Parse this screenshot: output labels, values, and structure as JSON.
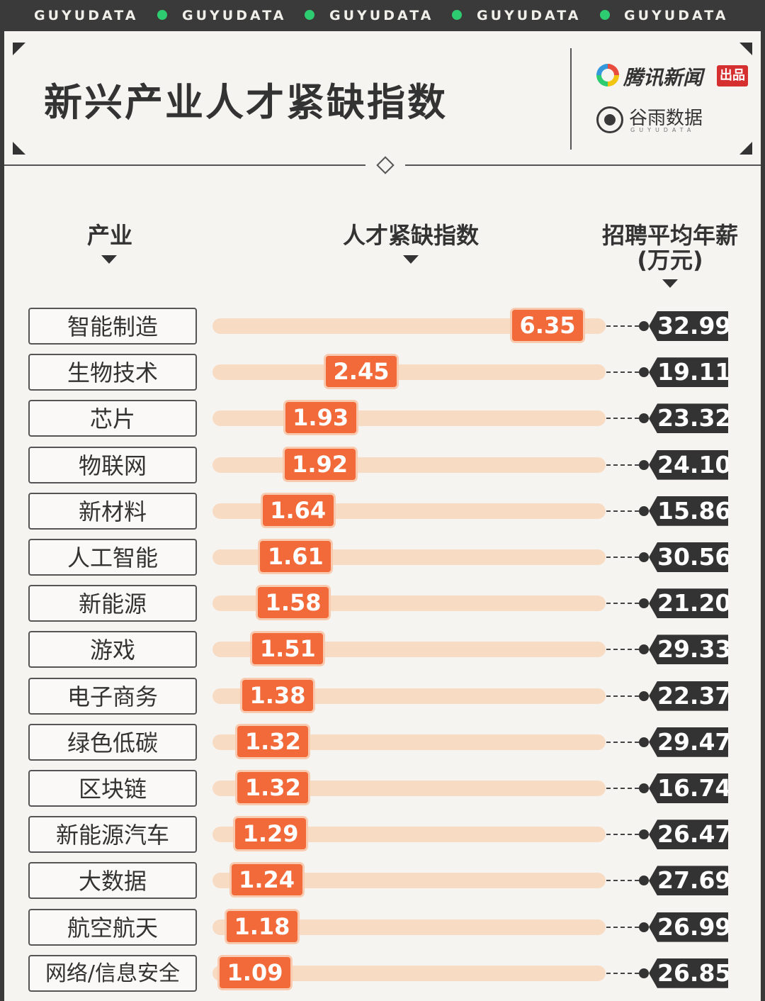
{
  "header": {
    "watermark": "GUYUDATA",
    "title": "新兴产业人才紧缺指数",
    "brand_tencent": "腾讯新闻",
    "brand_tencent_tag": "出品",
    "brand_guyu": "谷雨数据",
    "brand_guyu_sub": "GUYUDATA"
  },
  "columns": {
    "industry": "产业",
    "index": "人才紧缺指数",
    "salary_line1": "招聘平均年薪",
    "salary_line2": "(万元)"
  },
  "colors": {
    "accent": "#f2693a",
    "track": "#f8dbc3",
    "dark": "#333333",
    "dot": "#2ecc71"
  },
  "chart_data": {
    "type": "bar",
    "title": "新兴产业人才紧缺指数",
    "categories": [
      "智能制造",
      "生物技术",
      "芯片",
      "物联网",
      "新材料",
      "人工智能",
      "新能源",
      "游戏",
      "电子商务",
      "绿色低碳",
      "区块链",
      "新能源汽车",
      "大数据",
      "航空航天",
      "网络/信息安全"
    ],
    "series": [
      {
        "name": "人才紧缺指数",
        "values": [
          "6.35",
          "2.45",
          "1.93",
          "1.92",
          "1.64",
          "1.61",
          "1.58",
          "1.51",
          "1.38",
          "1.32",
          "1.32",
          "1.29",
          "1.24",
          "1.18",
          "1.09"
        ]
      },
      {
        "name": "招聘平均年薪(万元)",
        "values": [
          "32.99",
          "19.11",
          "23.32",
          "24.10",
          "15.86",
          "30.56",
          "21.20",
          "29.33",
          "22.37",
          "29.47",
          "16.74",
          "26.47",
          "27.69",
          "26.99",
          "26.85"
        ]
      }
    ]
  }
}
